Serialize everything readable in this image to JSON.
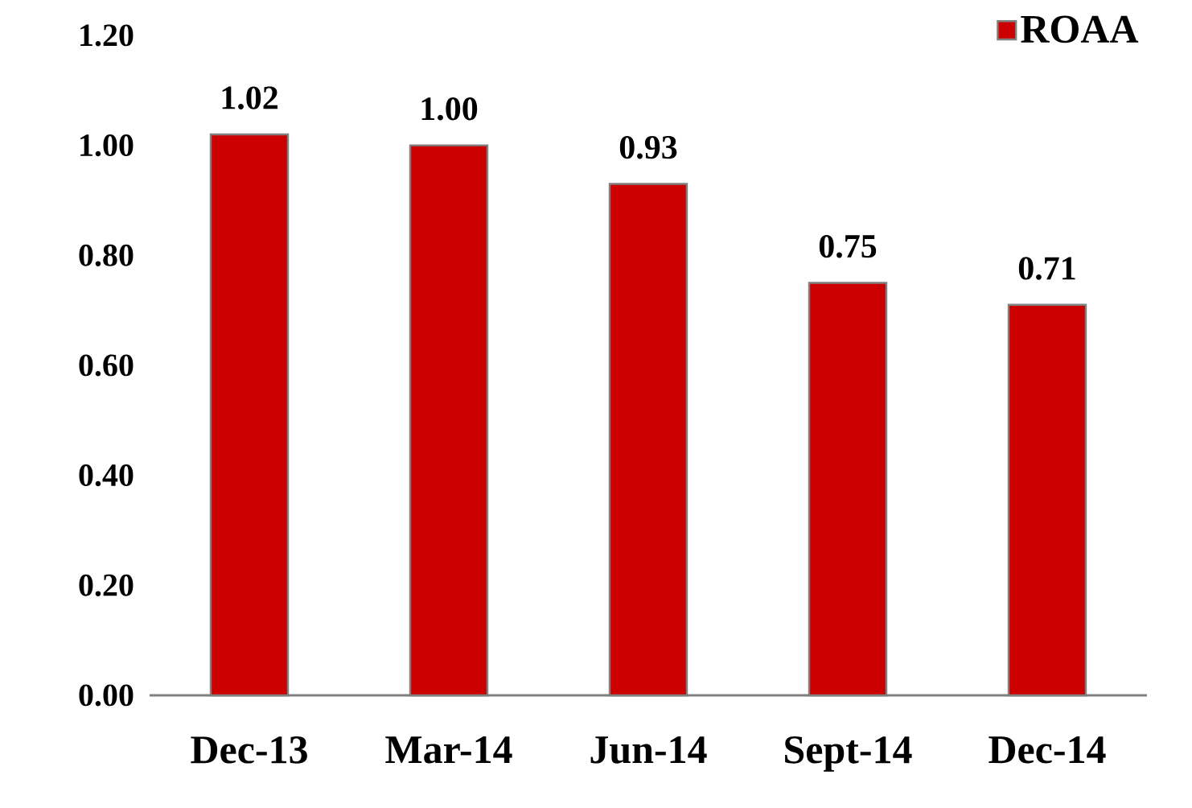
{
  "chart_data": {
    "type": "bar",
    "categories": [
      "Dec-13",
      "Mar-14",
      "Jun-14",
      "Sept-14",
      "Dec-14"
    ],
    "series": [
      {
        "name": "ROAA",
        "color": "#cc0000",
        "values": [
          1.02,
          1.0,
          0.93,
          0.75,
          0.71
        ]
      }
    ],
    "value_labels": [
      "1.02",
      "1.00",
      "0.93",
      "0.75",
      "0.71"
    ],
    "ylim": [
      0,
      1.2
    ],
    "yticks": [
      {
        "value": 0,
        "label": "0.00"
      },
      {
        "value": 0.2,
        "label": "0.20"
      },
      {
        "value": 0.4,
        "label": "0.40"
      },
      {
        "value": 0.6,
        "label": "0.60"
      },
      {
        "value": 0.8,
        "label": "0.80"
      },
      {
        "value": 1.0,
        "label": "1.00"
      },
      {
        "value": 1.2,
        "label": "1.20"
      }
    ],
    "grid": false,
    "legend": "top right"
  }
}
